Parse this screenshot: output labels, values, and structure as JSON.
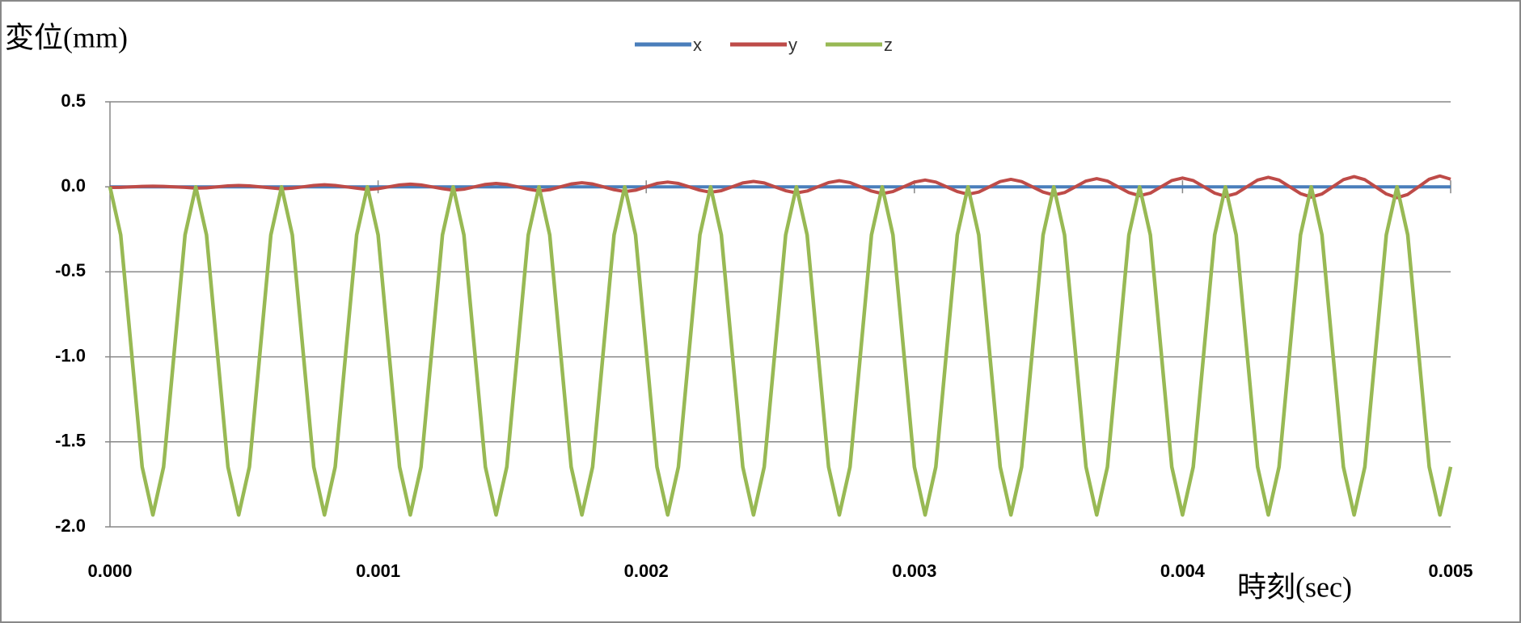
{
  "chart_data": {
    "type": "line",
    "y_label": "変位(mm)",
    "x_label": "時刻(sec)",
    "xlim": [
      0,
      0.005
    ],
    "xticks": [
      {
        "value": 0,
        "label": "0.000"
      },
      {
        "value": 0.001,
        "label": "0.001"
      },
      {
        "value": 0.002,
        "label": "0.002"
      },
      {
        "value": 0.003,
        "label": "0.003"
      },
      {
        "value": 0.004,
        "label": "0.004"
      },
      {
        "value": 0.005,
        "label": "0.005"
      }
    ],
    "ylim": [
      -2,
      0.5
    ],
    "yticks": [
      0.5,
      {
        "value": 0,
        "label": "0.0"
      },
      -0.5,
      {
        "value": -1,
        "label": "-1.0"
      },
      -1.5,
      {
        "value": -2,
        "label": "-2.0"
      }
    ],
    "grid": true,
    "legend": "top",
    "x": [
      0,
      4e-05,
      8e-05,
      0.00012,
      0.00016,
      0.0002,
      0.00024,
      0.00028,
      0.00032,
      0.00036,
      0.0004,
      0.00044,
      0.00048,
      0.00052,
      0.00056,
      0.0006,
      0.00064,
      0.00068,
      0.00072,
      0.00076,
      0.0008,
      0.00084,
      0.00088,
      0.00092,
      0.00096,
      0.001,
      0.00104,
      0.00108,
      0.00112,
      0.00116,
      0.0012,
      0.00124,
      0.00128,
      0.00132,
      0.00136,
      0.0014,
      0.00144,
      0.00148,
      0.00152,
      0.00156,
      0.0016,
      0.00164,
      0.00168,
      0.00172,
      0.00176,
      0.0018,
      0.00184,
      0.00188,
      0.00192,
      0.00196,
      0.002,
      0.00204,
      0.00208,
      0.00212,
      0.00216,
      0.0022,
      0.00224,
      0.00228,
      0.00232,
      0.00236,
      0.0024,
      0.00244,
      0.00248,
      0.00252,
      0.00256,
      0.0026,
      0.00264,
      0.00268,
      0.00272,
      0.00276,
      0.0028,
      0.00284,
      0.00288,
      0.00292,
      0.00296,
      0.003,
      0.00304,
      0.00308,
      0.00312,
      0.00316,
      0.0032,
      0.00324,
      0.00328,
      0.00332,
      0.00336,
      0.0034,
      0.00344,
      0.00348,
      0.00352,
      0.00356,
      0.0036,
      0.00364,
      0.00368,
      0.00372,
      0.00376,
      0.0038,
      0.00384,
      0.00388,
      0.00392,
      0.00396,
      0.004,
      0.00404,
      0.00408,
      0.00412,
      0.00416,
      0.0042,
      0.00424,
      0.00428,
      0.00432,
      0.00436,
      0.0044,
      0.00444,
      0.00448,
      0.00452,
      0.00456,
      0.0046,
      0.00464,
      0.00468,
      0.00472,
      0.00476,
      0.0048,
      0.00484,
      0.00488,
      0.00492,
      0.00496,
      0.005
    ],
    "series": [
      {
        "name": "x",
        "color": "#4a7ebb",
        "values": [
          0,
          0,
          0,
          0,
          0,
          0,
          0,
          0,
          0,
          0,
          0,
          0,
          0,
          0,
          0,
          0,
          0,
          0,
          0,
          0,
          0,
          0,
          0,
          0,
          0,
          0,
          0,
          0,
          0,
          0,
          0,
          0,
          0,
          0,
          0,
          0,
          0,
          0,
          0,
          0,
          0,
          0,
          0,
          0,
          0,
          0,
          0,
          0,
          0,
          0,
          0,
          0,
          0,
          0,
          0,
          0,
          0,
          0,
          0,
          0,
          0,
          0,
          0,
          0,
          0,
          0,
          0,
          0,
          0,
          0,
          0,
          0,
          0,
          0,
          0,
          0,
          0,
          0,
          0,
          0,
          0,
          0,
          0,
          0,
          0,
          0,
          0,
          0,
          0,
          0,
          0,
          0,
          0,
          0,
          0,
          0,
          0,
          0,
          0,
          0,
          0,
          0,
          0,
          0,
          0,
          0,
          0,
          0,
          0,
          0,
          0,
          0,
          0,
          0,
          0,
          0,
          0,
          0,
          0,
          0,
          0,
          0,
          0,
          0,
          0,
          0
        ]
      },
      {
        "name": "y",
        "color": "#be4b48",
        "values": [
          -0.004,
          -0.003,
          0,
          0.003,
          0.004,
          0.003,
          0,
          -0.003,
          -0.008,
          -0.006,
          0,
          0.006,
          0.008,
          0.006,
          0,
          -0.006,
          -0.012,
          -0.008,
          0,
          0.008,
          0.012,
          0.008,
          0,
          -0.008,
          -0.016,
          -0.011,
          0,
          0.011,
          0.016,
          0.011,
          0,
          -0.011,
          -0.02,
          -0.014,
          0,
          0.014,
          0.02,
          0.014,
          0,
          -0.014,
          -0.024,
          -0.017,
          0,
          0.017,
          0.024,
          0.017,
          0,
          -0.017,
          -0.028,
          -0.02,
          0,
          0.02,
          0.028,
          0.02,
          0,
          -0.02,
          -0.032,
          -0.023,
          0,
          0.023,
          0.032,
          0.023,
          0,
          -0.023,
          -0.036,
          -0.025,
          0,
          0.025,
          0.036,
          0.025,
          0,
          -0.025,
          -0.04,
          -0.028,
          0,
          0.028,
          0.04,
          0.028,
          0,
          -0.028,
          -0.044,
          -0.031,
          0,
          0.031,
          0.044,
          0.031,
          0,
          -0.031,
          -0.048,
          -0.034,
          0,
          0.034,
          0.048,
          0.034,
          0,
          -0.034,
          -0.052,
          -0.037,
          0,
          0.037,
          0.052,
          0.037,
          0,
          -0.037,
          -0.056,
          -0.04,
          0,
          0.04,
          0.056,
          0.04,
          0,
          -0.04,
          -0.06,
          -0.042,
          0,
          0.042,
          0.06,
          0.042,
          0,
          -0.042,
          -0.064,
          -0.045,
          0,
          0.045,
          0.064,
          0.045
        ]
      },
      {
        "name": "z",
        "color": "#98b954",
        "values": [
          0,
          -0.283,
          -0.965,
          -1.647,
          -1.93,
          -1.647,
          -0.965,
          -0.283,
          0,
          -0.283,
          -0.965,
          -1.647,
          -1.93,
          -1.647,
          -0.965,
          -0.283,
          0,
          -0.283,
          -0.965,
          -1.647,
          -1.93,
          -1.647,
          -0.965,
          -0.283,
          0,
          -0.283,
          -0.965,
          -1.647,
          -1.93,
          -1.647,
          -0.965,
          -0.283,
          0,
          -0.283,
          -0.965,
          -1.647,
          -1.93,
          -1.647,
          -0.965,
          -0.283,
          0,
          -0.283,
          -0.965,
          -1.647,
          -1.93,
          -1.647,
          -0.965,
          -0.283,
          0,
          -0.283,
          -0.965,
          -1.647,
          -1.93,
          -1.647,
          -0.965,
          -0.283,
          0,
          -0.283,
          -0.965,
          -1.647,
          -1.93,
          -1.647,
          -0.965,
          -0.283,
          0,
          -0.283,
          -0.965,
          -1.647,
          -1.93,
          -1.647,
          -0.965,
          -0.283,
          0,
          -0.283,
          -0.965,
          -1.647,
          -1.93,
          -1.647,
          -0.965,
          -0.283,
          0,
          -0.283,
          -0.965,
          -1.647,
          -1.93,
          -1.647,
          -0.965,
          -0.283,
          0,
          -0.283,
          -0.965,
          -1.647,
          -1.93,
          -1.647,
          -0.965,
          -0.283,
          0,
          -0.283,
          -0.965,
          -1.647,
          -1.93,
          -1.647,
          -0.965,
          -0.283,
          0,
          -0.283,
          -0.965,
          -1.647,
          -1.93,
          -1.647,
          -0.965,
          -0.283,
          0,
          -0.283,
          -0.965,
          -1.647,
          -1.93,
          -1.647,
          -0.965,
          -0.283,
          0,
          -0.283,
          -0.965,
          -1.647,
          -1.93,
          -1.647
        ]
      }
    ]
  }
}
